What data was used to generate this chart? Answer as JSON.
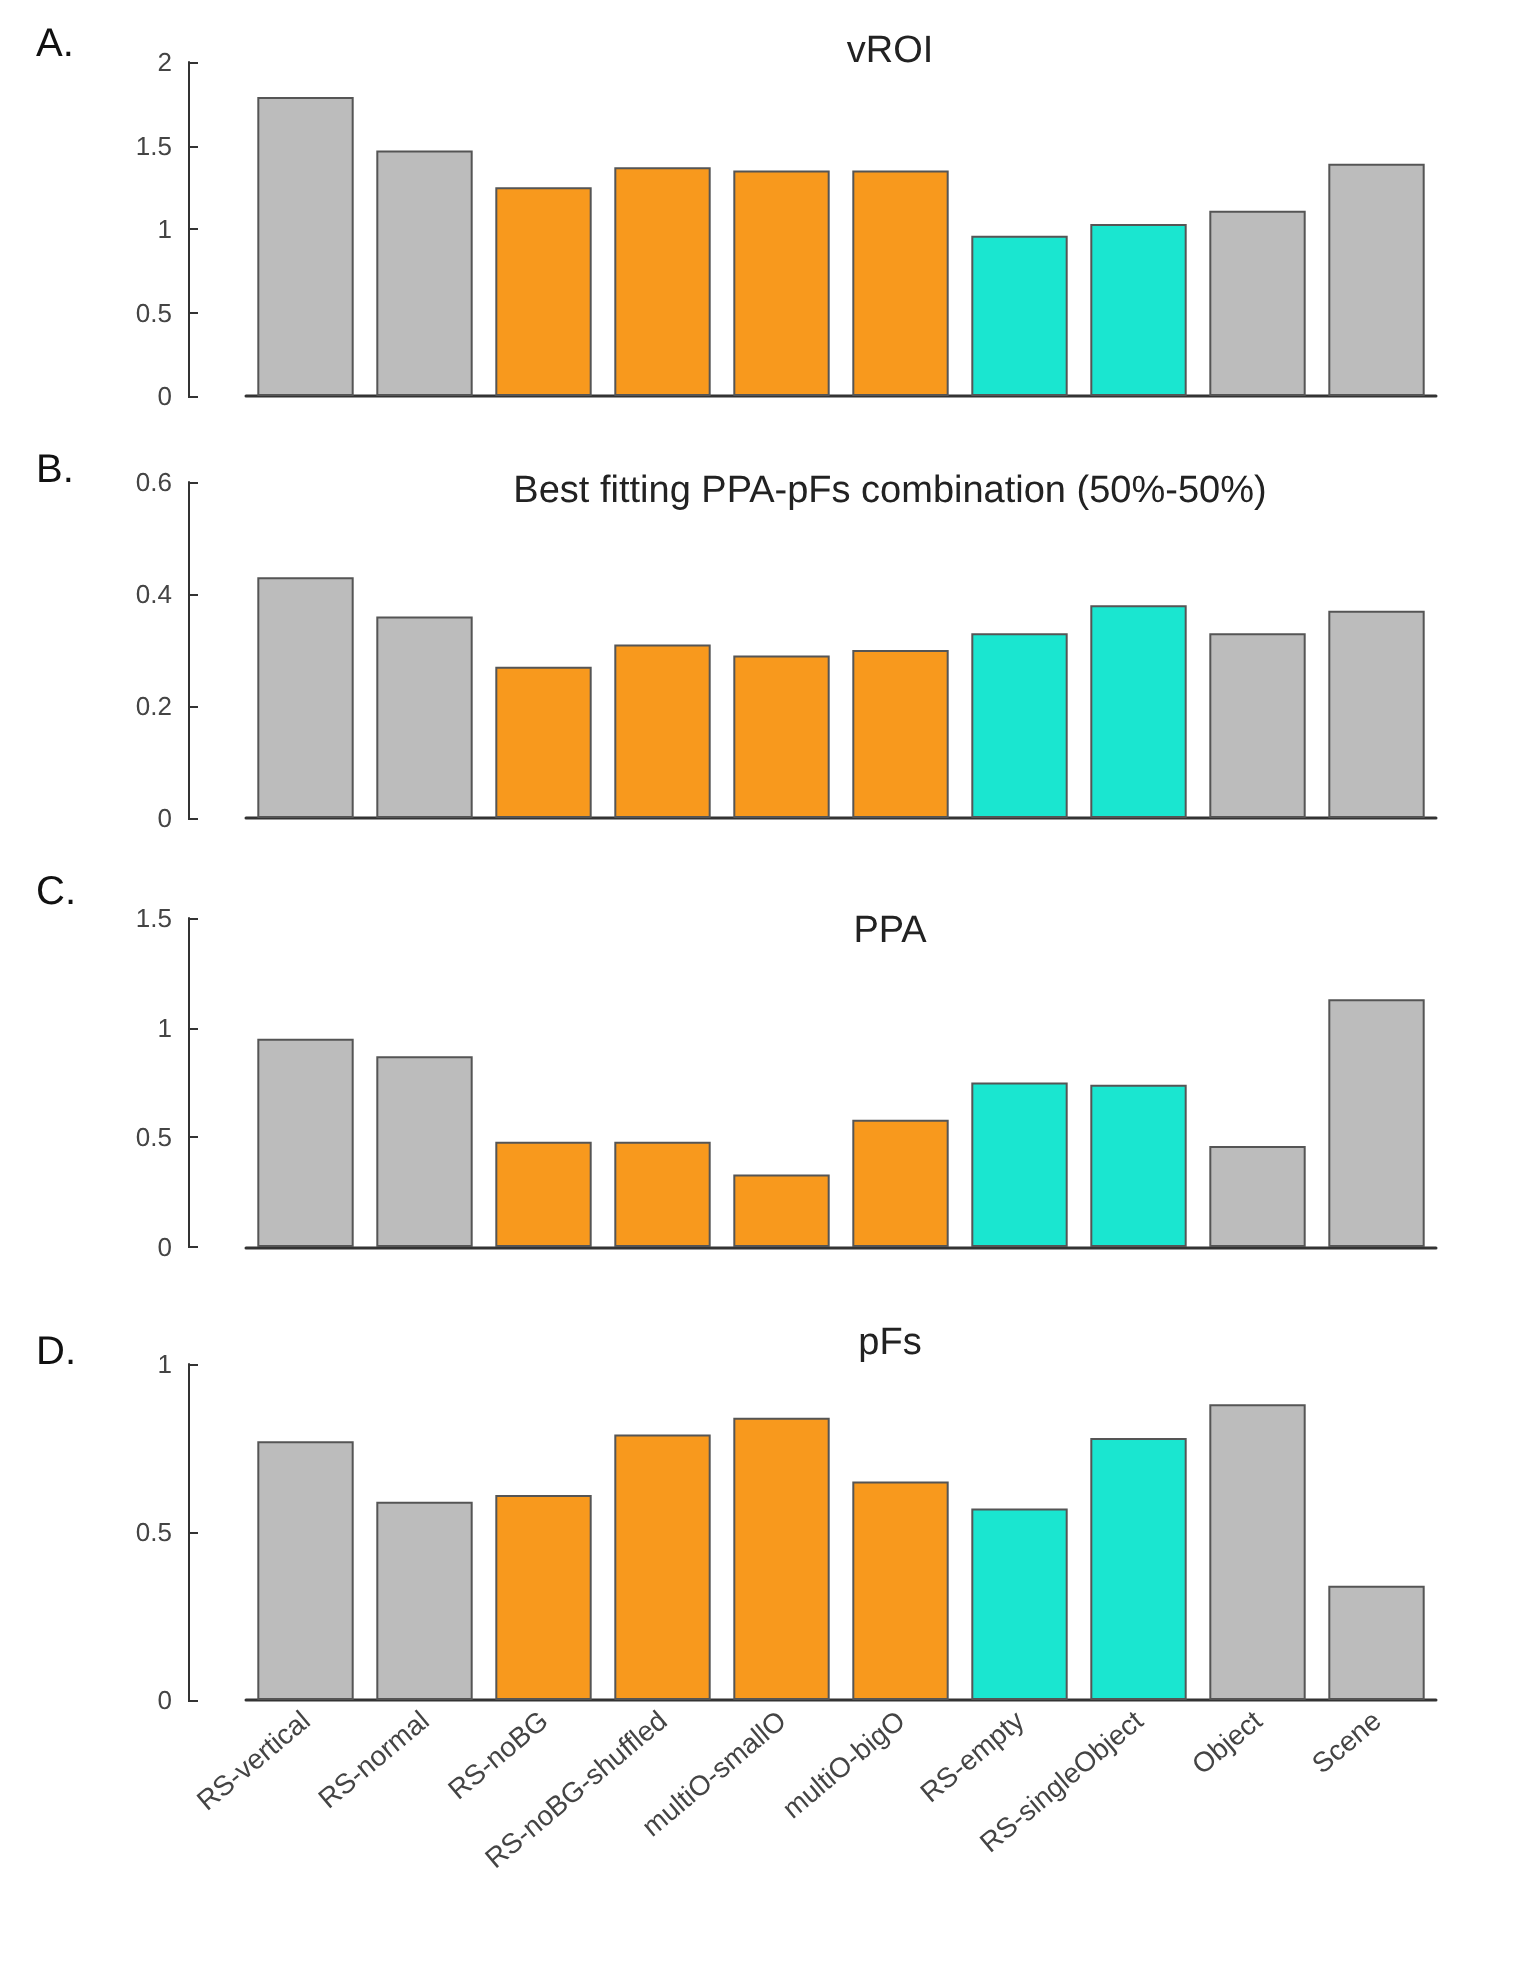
{
  "chart_data": [
    {
      "type": "bar",
      "title": "vROI",
      "annotations": [
        "A."
      ],
      "categories": [
        null,
        null,
        null,
        null,
        null,
        null,
        null,
        null,
        null,
        null
      ],
      "values": [
        1.79,
        1.47,
        1.25,
        1.37,
        1.35,
        1.35,
        0.96,
        1.03,
        1.11,
        1.39
      ],
      "colors": [
        "#bcbcbc",
        "#bcbcbc",
        "#f8991d",
        "#f8991d",
        "#f8991d",
        "#f8991d",
        "#1ae6d0",
        "#1ae6d0",
        "#bcbcbc",
        "#bcbcbc"
      ],
      "ylim": [
        0,
        2
      ],
      "yticks": [
        0,
        0.5,
        1,
        1.5,
        2
      ],
      "grid": false,
      "tick_labels": "y"
    },
    {
      "type": "bar",
      "title": "Best fitting PPA-pFs combination (50%-50%)",
      "annotations": [
        "B."
      ],
      "categories": [
        null,
        null,
        null,
        null,
        null,
        null,
        null,
        null,
        null,
        null
      ],
      "values": [
        0.43,
        0.36,
        0.27,
        0.31,
        0.29,
        0.3,
        0.33,
        0.38,
        0.33,
        0.37
      ],
      "colors": [
        "#bcbcbc",
        "#bcbcbc",
        "#f8991d",
        "#f8991d",
        "#f8991d",
        "#f8991d",
        "#1ae6d0",
        "#1ae6d0",
        "#bcbcbc",
        "#bcbcbc"
      ],
      "ylim": [
        0,
        0.6
      ],
      "yticks": [
        0,
        0.2,
        0.4,
        0.6
      ],
      "grid": false,
      "tick_labels": "y"
    },
    {
      "type": "bar",
      "title": "PPA",
      "annotations": [
        "C."
      ],
      "categories": [
        null,
        null,
        null,
        null,
        null,
        null,
        null,
        null,
        null,
        null
      ],
      "values": [
        0.95,
        0.87,
        0.48,
        0.48,
        0.33,
        0.58,
        0.75,
        0.74,
        0.46,
        1.13
      ],
      "colors": [
        "#bcbcbc",
        "#bcbcbc",
        "#f8991d",
        "#f8991d",
        "#f8991d",
        "#f8991d",
        "#1ae6d0",
        "#1ae6d0",
        "#bcbcbc",
        "#bcbcbc"
      ],
      "ylim": [
        0,
        1.5
      ],
      "yticks": [
        0,
        0.5,
        1,
        1.5
      ],
      "grid": false,
      "tick_labels": "y"
    },
    {
      "type": "bar",
      "title": "pFs",
      "annotations": [
        "D."
      ],
      "categories": [
        "RS-vertical",
        "RS-normal",
        "RS-noBG",
        "RS-noBG-shuffled",
        "multiO-smallO",
        "multiO-bigO",
        "RS-empty",
        "RS-singleObject",
        "Object",
        "Scene"
      ],
      "values": [
        0.77,
        0.59,
        0.61,
        0.79,
        0.84,
        0.65,
        0.57,
        0.78,
        0.88,
        0.34
      ],
      "colors": [
        "#bcbcbc",
        "#bcbcbc",
        "#f8991d",
        "#f8991d",
        "#f8991d",
        "#f8991d",
        "#1ae6d0",
        "#1ae6d0",
        "#bcbcbc",
        "#bcbcbc"
      ],
      "ylim": [
        0,
        1
      ],
      "yticks": [
        0,
        0.5,
        1
      ],
      "grid": false
    }
  ]
}
